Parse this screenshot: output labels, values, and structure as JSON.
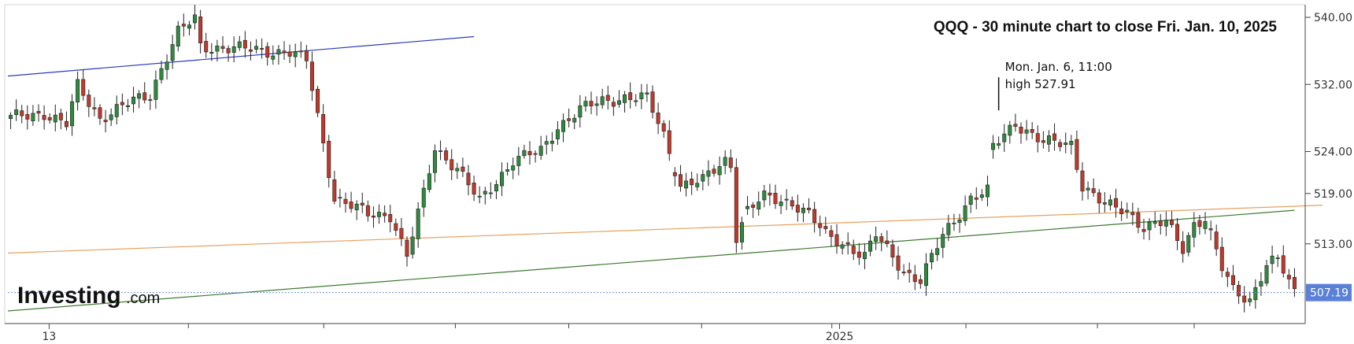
{
  "chart_data": {
    "type": "candlestick",
    "title": "QQQ - 30 minute chart to close Fri. Jan. 10, 2025",
    "y_axis": {
      "position": "right",
      "ticks": [
        540.0,
        532.0,
        524.0,
        519.0,
        513.0
      ],
      "ylim": [
        503.5,
        541.5
      ]
    },
    "x_axis": {
      "labels": [
        {
          "text": "13",
          "at": 0.032
        },
        {
          "text": "2025",
          "at": 0.645
        }
      ],
      "separators": [
        0.14,
        0.245,
        0.347,
        0.435,
        0.538,
        0.639,
        0.743,
        0.845,
        0.92
      ]
    },
    "current_price": {
      "value": 507.19,
      "label": "507.19"
    },
    "annotation": {
      "line1": "Mon. Jan. 6, 11:00",
      "line2": "high 527.91",
      "bar_index": 177,
      "price": 527.91
    },
    "trend_lines": [
      {
        "name": "blue",
        "color": "#2a3ab8",
        "from": [
          0,
          533.0
        ],
        "to": [
          83,
          537.7
        ]
      },
      {
        "name": "orange",
        "color": "#e8a060",
        "from": [
          0,
          511.9
        ],
        "to": [
          235,
          517.6
        ]
      },
      {
        "name": "green",
        "color": "#3d7a30",
        "from": [
          0,
          505.0
        ],
        "to": [
          230,
          517.0
        ]
      }
    ],
    "waypoints": [
      [
        0,
        528.0
      ],
      [
        6,
        528.6
      ],
      [
        10,
        527.2
      ],
      [
        12,
        531.8
      ],
      [
        16,
        528.0
      ],
      [
        22,
        530.0
      ],
      [
        25,
        530.8
      ],
      [
        27,
        534.0
      ],
      [
        30,
        538.2
      ],
      [
        33,
        539.8
      ],
      [
        34,
        536.5
      ],
      [
        38,
        536.4
      ],
      [
        46,
        536.0
      ],
      [
        50,
        535.8
      ],
      [
        53,
        534.8
      ],
      [
        56,
        525.0
      ],
      [
        58,
        518.5
      ],
      [
        64,
        516.5
      ],
      [
        68,
        516.5
      ],
      [
        71,
        511.5
      ],
      [
        74,
        519.0
      ],
      [
        76,
        524.5
      ],
      [
        80,
        522.0
      ],
      [
        84,
        518.0
      ],
      [
        87,
        520.5
      ],
      [
        90,
        523.0
      ],
      [
        95,
        524.0
      ],
      [
        98,
        527.0
      ],
      [
        102,
        529.0
      ],
      [
        106,
        530.0
      ],
      [
        110,
        530.5
      ],
      [
        114,
        530.3
      ],
      [
        117,
        526.0
      ],
      [
        120,
        520.0
      ],
      [
        124,
        520.5
      ],
      [
        128,
        523.0
      ],
      [
        129,
        522.5
      ],
      [
        130,
        514.0
      ],
      [
        132,
        517.0
      ],
      [
        135,
        518.5
      ],
      [
        140,
        518.0
      ],
      [
        143,
        516.5
      ],
      [
        146,
        514.0
      ],
      [
        150,
        512.8
      ],
      [
        153,
        511.5
      ],
      [
        155,
        514.0
      ],
      [
        160,
        509.8
      ],
      [
        163,
        508.6
      ],
      [
        167,
        514.0
      ],
      [
        172,
        518.5
      ],
      [
        175,
        519.2
      ],
      [
        176,
        524.5
      ],
      [
        180,
        527.5
      ],
      [
        185,
        525.0
      ],
      [
        190,
        525.0
      ],
      [
        192,
        520.0
      ],
      [
        196,
        517.5
      ],
      [
        200,
        517.0
      ],
      [
        203,
        515.0
      ],
      [
        207,
        515.5
      ],
      [
        210,
        512.5
      ],
      [
        212,
        515.5
      ],
      [
        214,
        516.0
      ],
      [
        217,
        510.0
      ],
      [
        219,
        507.5
      ],
      [
        222,
        506.4
      ],
      [
        225,
        510.5
      ],
      [
        227,
        511.0
      ],
      [
        230,
        507.2
      ]
    ],
    "gaps": [
      {
        "after": 58,
        "direction": 1
      },
      {
        "after": 118,
        "direction": -1
      },
      {
        "after": 131,
        "direction": -1
      },
      {
        "after": 175,
        "direction": 1
      },
      {
        "after": 214,
        "direction": -1
      }
    ],
    "bar_count": 231,
    "colors": {
      "up": "#2e8b3e",
      "down": "#c0392b",
      "wick": "#222222",
      "axis": "#444444",
      "price_tag": "#5b80d8",
      "price_line": "#7090d8"
    }
  },
  "logo": {
    "name": "Investing",
    "suffix": ".com"
  }
}
